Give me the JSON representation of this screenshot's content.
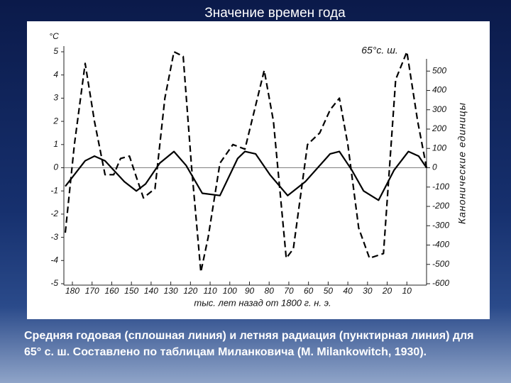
{
  "chart_data": {
    "type": "line",
    "title": "Значение времен года",
    "y_label": "°C",
    "y2_label": "Канонические единицы",
    "x_label": "тыс. лет назад от 1800 г. н. э.",
    "annotation": "65°с. ш.",
    "caption": "Средняя годовая (сплошная линия) и летняя радиация (пунктирная линия) для 65° с. ш. Составлено по таблицам Миланковича (M. Milankowitch, 1930).",
    "xlim": [
      185,
      0
    ],
    "xticks": [
      180,
      170,
      160,
      150,
      140,
      130,
      120,
      110,
      100,
      90,
      80,
      70,
      60,
      50,
      40,
      30,
      20,
      10
    ],
    "ylim": [
      -5,
      5
    ],
    "yticks": [
      -5,
      -4,
      -3,
      -2,
      -1,
      0,
      1,
      2,
      3,
      4,
      5
    ],
    "y2lim": [
      -600,
      600
    ],
    "y2ticks": [
      -600,
      -500,
      -400,
      -300,
      -200,
      -100,
      0,
      100,
      200,
      300,
      400,
      500
    ],
    "series": [
      {
        "color": "#000000",
        "style": "solid",
        "x": [
          183.6,
          173.5,
          168.8,
          163.4,
          153.6,
          147.5,
          142.8,
          135.6,
          128.4,
          122.2,
          114,
          105,
          96,
          92.3,
          86.9,
          79.6,
          70.6,
          61.6,
          49,
          44.3,
          38,
          32,
          24.4,
          16.5,
          9.2,
          4,
          0
        ],
        "values": [
          -0.8,
          0.3,
          0.5,
          0.3,
          -0.6,
          -1.0,
          -0.7,
          0.2,
          0.7,
          0.1,
          -1.1,
          -1.2,
          0.4,
          0.7,
          0.6,
          -0.3,
          -1.2,
          -0.6,
          0.6,
          0.7,
          -0.1,
          -1.0,
          -1.4,
          -0.1,
          0.7,
          0.5,
          0
        ]
      },
      {
        "color": "#000000",
        "style": "dashed",
        "x": [
          183.6,
          179,
          173.5,
          168.8,
          163.4,
          159,
          155.5,
          151,
          147.5,
          143.9,
          138,
          133,
          128.4,
          123.7,
          119.4,
          114.7,
          111,
          105,
          98.4,
          92.3,
          82.5,
          77.8,
          71.3,
          67.7,
          60.5,
          54.3,
          49,
          44.3,
          40,
          34.5,
          29,
          21.9,
          15.7,
          10,
          4.5,
          0
        ],
        "values": [
          -2.8,
          1,
          4.5,
          2,
          -0.3,
          -0.3,
          0.4,
          0.5,
          -0.4,
          -1.3,
          -0.9,
          3,
          5,
          4.8,
          0,
          -4.5,
          -3,
          0.2,
          1,
          0.8,
          4.2,
          2,
          -3.9,
          -3.5,
          1,
          1.5,
          2.5,
          3,
          1,
          -2.6,
          -3.9,
          -3.7,
          3.8,
          5,
          2,
          0
        ]
      }
    ]
  }
}
